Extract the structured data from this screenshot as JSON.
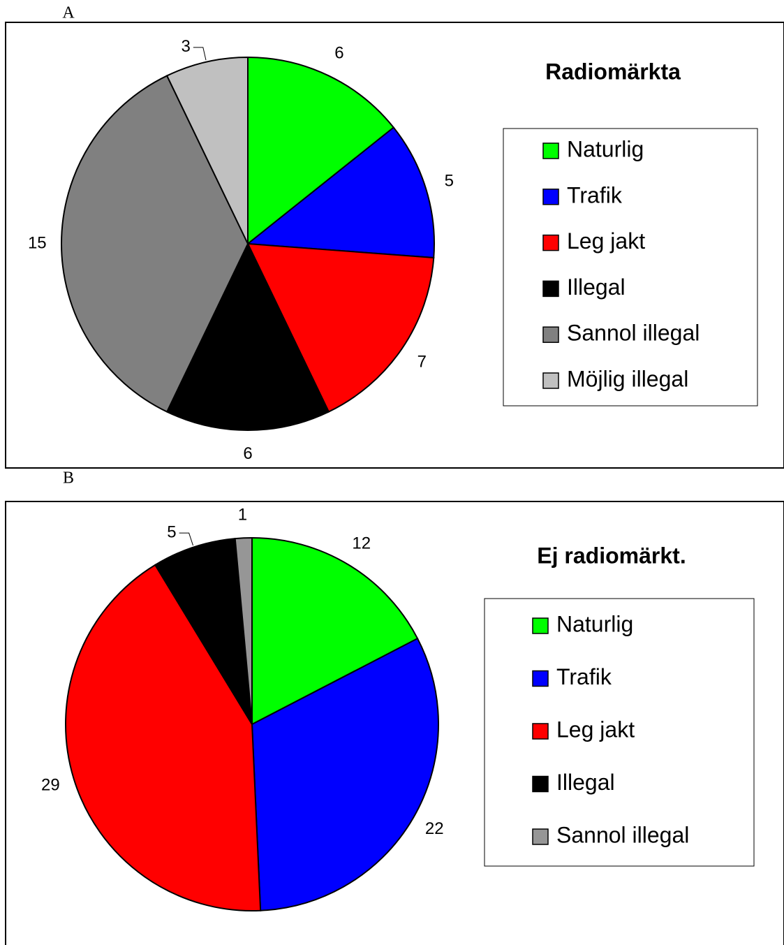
{
  "chart_data": [
    {
      "type": "pie",
      "panel": "A",
      "title": "Radiomärkta",
      "categories": [
        "Naturlig",
        "Trafik",
        "Leg jakt",
        "Illegal",
        "Sannol illegal",
        "Möjlig illegal"
      ],
      "values": [
        6,
        5,
        7,
        6,
        15,
        3
      ],
      "colors": [
        "#00ff00",
        "#0000ff",
        "#ff0000",
        "#000000",
        "#808080",
        "#c0c0c0"
      ],
      "legend": "right"
    },
    {
      "type": "pie",
      "panel": "B",
      "title": "Ej radiomärkt.",
      "categories": [
        "Naturlig",
        "Trafik",
        "Leg jakt",
        "Illegal",
        "Sannol illegal"
      ],
      "values": [
        12,
        22,
        29,
        5,
        1
      ],
      "colors": [
        "#00ff00",
        "#0000ff",
        "#ff0000",
        "#000000",
        "#969696"
      ],
      "legend": "right"
    }
  ]
}
